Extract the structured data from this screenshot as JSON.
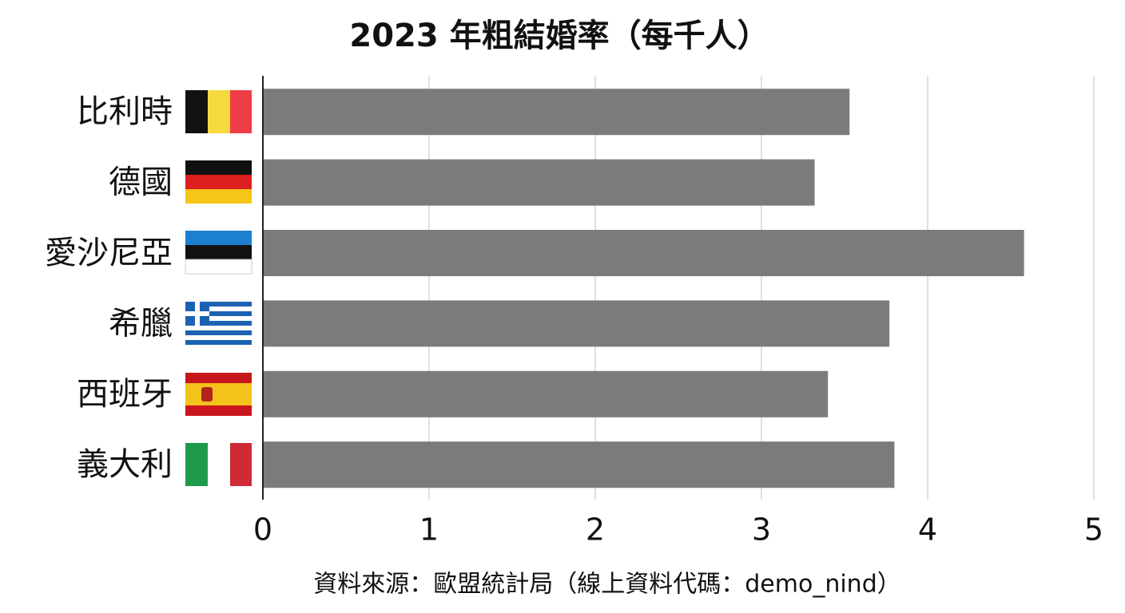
{
  "chart_data": {
    "type": "bar",
    "orientation": "horizontal",
    "title": "2023 年粗結婚率（每千人）",
    "categories": [
      "比利時",
      "德國",
      "愛沙尼亞",
      "希臘",
      "西班牙",
      "義大利"
    ],
    "values": [
      3.53,
      3.32,
      4.58,
      3.77,
      3.4,
      3.8
    ],
    "color": "#7b7b7b",
    "xlim": [
      0,
      5
    ],
    "xticks": [
      0,
      1,
      2,
      3,
      4,
      5
    ],
    "grid": true,
    "source": "資料來源：歐盟統計局（線上資料代碼：demo_nind）"
  }
}
